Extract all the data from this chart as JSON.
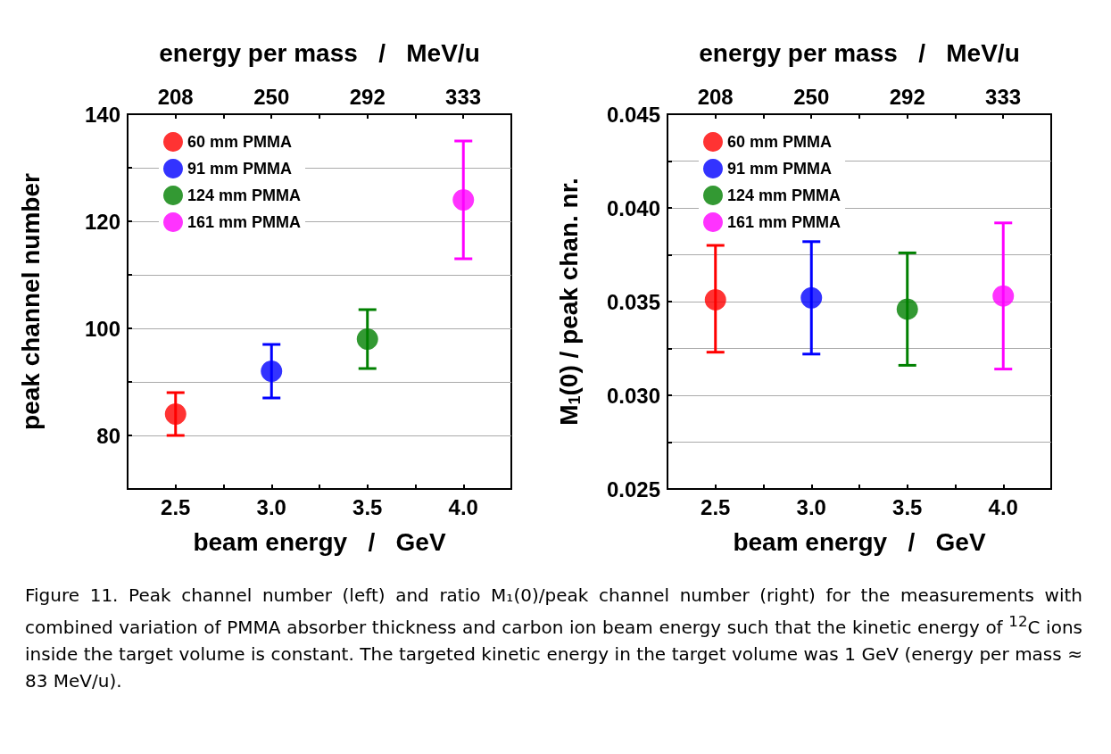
{
  "chart_data": [
    {
      "type": "scatter",
      "xlabel": "beam energy   /   GeV",
      "ylabel": "peak channel number",
      "x2label": "energy per mass   /   MeV/u",
      "xlim": [
        2.25,
        4.25
      ],
      "xticks": [
        {
          "value": 2.5,
          "label": "2.5"
        },
        {
          "value": 2.75,
          "label": null
        },
        {
          "value": 3,
          "label": "3.0"
        },
        {
          "value": 3.25,
          "label": null
        },
        {
          "value": 3.5,
          "label": "3.5"
        },
        {
          "value": 3.75,
          "label": null
        },
        {
          "value": 4,
          "label": "4.0"
        }
      ],
      "x2lim": [
        187.5,
        354.2
      ],
      "x2ticks": [
        {
          "value": 208.3,
          "label": "208"
        },
        {
          "value": 229.2,
          "label": null
        },
        {
          "value": 250,
          "label": "250"
        },
        {
          "value": 270.8,
          "label": null
        },
        {
          "value": 291.7,
          "label": "292"
        },
        {
          "value": 312.5,
          "label": null
        },
        {
          "value": 333.3,
          "label": "333"
        }
      ],
      "ylim": [
        70,
        140
      ],
      "yticks": [
        80,
        {
          "value": 90,
          "label": null
        },
        100,
        {
          "value": 110,
          "label": null
        },
        120,
        {
          "value": 130,
          "label": null
        },
        140
      ],
      "grid": "y",
      "legend": "top left",
      "marker": "circle",
      "series": [
        {
          "name": "60 mm PMMA",
          "color": "#ff0000",
          "x": [
            2.5
          ],
          "values": [
            84
          ],
          "errors": [
            [
              80,
              88
            ]
          ]
        },
        {
          "name": "91 mm PMMA",
          "color": "#0000ff",
          "x": [
            3
          ],
          "values": [
            92
          ],
          "errors": [
            [
              87,
              97
            ]
          ]
        },
        {
          "name": "124 mm PMMA",
          "color": "#008000",
          "x": [
            3.5
          ],
          "values": [
            98
          ],
          "errors": [
            [
              92.5,
              103.5
            ]
          ]
        },
        {
          "name": "161 mm PMMA",
          "color": "#ff00ff",
          "x": [
            4
          ],
          "values": [
            124
          ],
          "errors": [
            [
              113,
              135
            ]
          ]
        }
      ]
    },
    {
      "type": "scatter",
      "xlabel": "beam energy   /   GeV",
      "ylabel": "M$_{1}$(0) / peak chan. nr.",
      "x2label": "energy per mass   /   MeV/u",
      "xlim": [
        2.25,
        4.25
      ],
      "xticks": [
        {
          "value": 2.5,
          "label": "2.5"
        },
        {
          "value": 2.75,
          "label": null
        },
        {
          "value": 3,
          "label": "3.0"
        },
        {
          "value": 3.25,
          "label": null
        },
        {
          "value": 3.5,
          "label": "3.5"
        },
        {
          "value": 3.75,
          "label": null
        },
        {
          "value": 4,
          "label": "4.0"
        }
      ],
      "x2lim": [
        187.5,
        354.2
      ],
      "x2ticks": [
        {
          "value": 208.3,
          "label": "208"
        },
        {
          "value": 229.2,
          "label": null
        },
        {
          "value": 250,
          "label": "250"
        },
        {
          "value": 270.8,
          "label": null
        },
        {
          "value": 291.7,
          "label": "292"
        },
        {
          "value": 312.5,
          "label": null
        },
        {
          "value": 333.3,
          "label": "333"
        }
      ],
      "ylim": [
        0.025,
        0.045
      ],
      "yticks": [
        {
          "value": 0.025,
          "label": "0.025"
        },
        {
          "value": 0.0275,
          "label": null
        },
        {
          "value": 0.03,
          "label": "0.030"
        },
        {
          "value": 0.0325,
          "label": null
        },
        {
          "value": 0.035,
          "label": "0.035"
        },
        {
          "value": 0.0375,
          "label": null
        },
        {
          "value": 0.04,
          "label": "0.040"
        },
        {
          "value": 0.0425,
          "label": null
        },
        {
          "value": 0.045,
          "label": "0.045"
        }
      ],
      "grid": "y",
      "legend": "top left",
      "marker": "circle",
      "series": [
        {
          "name": "60 mm PMMA",
          "color": "#ff0000",
          "x": [
            2.5
          ],
          "values": [
            0.0351
          ],
          "errors": [
            [
              0.0323,
              0.038
            ]
          ]
        },
        {
          "name": "91 mm PMMA",
          "color": "#0000ff",
          "x": [
            3
          ],
          "values": [
            0.0352
          ],
          "errors": [
            [
              0.0322,
              0.0382
            ]
          ]
        },
        {
          "name": "124 mm PMMA",
          "color": "#008000",
          "x": [
            3.5
          ],
          "values": [
            0.0346
          ],
          "errors": [
            [
              0.0316,
              0.0376
            ]
          ]
        },
        {
          "name": "161 mm PMMA",
          "color": "#ff00ff",
          "x": [
            4
          ],
          "values": [
            0.0353
          ],
          "errors": [
            [
              0.0314,
              0.0392
            ]
          ]
        }
      ],
      "annotations": [
        "Figure 11. Peak channel number (left) and ratio M₁(0)/peak channel number (right) for the measurements with combined variation of PMMA absorber thickness and carbon ion beam energy such that the kinetic energy of $^{12}$C ions inside the target volume is constant. The targeted kinetic energy in the target volume was 1 GeV (energy per mass ≈ 83 MeV/u)."
      ]
    }
  ]
}
